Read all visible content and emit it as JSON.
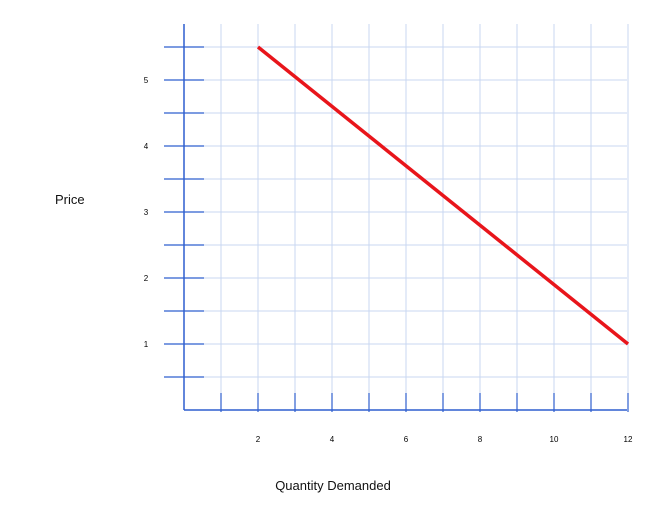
{
  "chart_data": {
    "type": "line",
    "title": "",
    "xlabel": "Quantity Demanded",
    "ylabel": "Price",
    "xlim": [
      0,
      12
    ],
    "ylim": [
      0,
      5.8
    ],
    "x_ticks": [
      {
        "value": 2,
        "label": "2"
      },
      {
        "value": 4,
        "label": "4"
      },
      {
        "value": 6,
        "label": "6"
      },
      {
        "value": 8,
        "label": "8"
      },
      {
        "value": 10,
        "label": "10"
      },
      {
        "value": 12,
        "label": "12"
      }
    ],
    "y_ticks": [
      {
        "value": 1,
        "label": "1"
      },
      {
        "value": 2,
        "label": "2"
      },
      {
        "value": 3,
        "label": "3"
      },
      {
        "value": 4,
        "label": "4"
      },
      {
        "value": 5,
        "label": "5"
      }
    ],
    "grid": true,
    "series": [
      {
        "x": [
          2,
          12
        ],
        "y": [
          5.5,
          1.0
        ],
        "color": "#e8151b"
      }
    ]
  },
  "colors": {
    "axis": "#2f5fcf",
    "grid": "#c9d7f2",
    "line": "#e8151b"
  }
}
